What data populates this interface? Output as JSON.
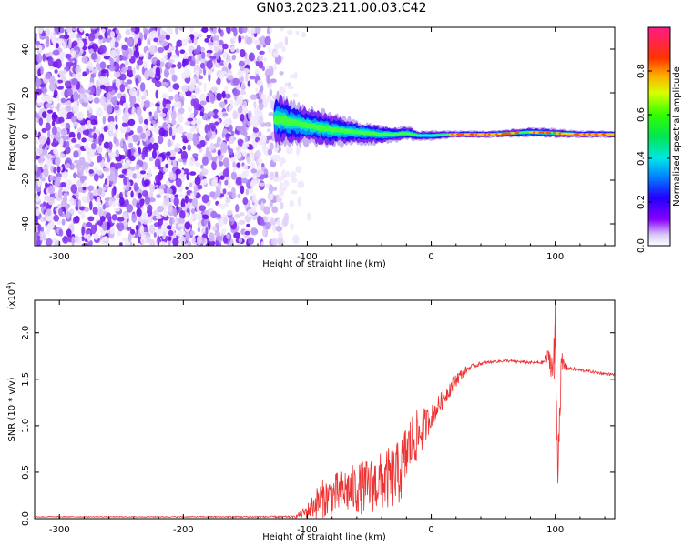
{
  "title": "GN03.2023.211.00.03.C42",
  "chart_data": [
    {
      "type": "heatmap",
      "xlabel": "Height of straight line (km)",
      "ylabel": "Frequency (Hz)",
      "xlim": [
        -320,
        148
      ],
      "ylim": [
        -50,
        50
      ],
      "xticks": [
        -300,
        -200,
        -100,
        0,
        100
      ],
      "yticks": [
        -40,
        -20,
        0,
        20,
        40
      ],
      "ridge": {
        "x": [
          -125,
          -110,
          -100,
          -80,
          -60,
          -40,
          -30,
          -20,
          -10,
          0,
          20,
          50,
          80,
          100,
          120,
          148
        ],
        "center_hz": [
          8,
          6,
          5,
          3,
          2,
          1,
          1,
          1.5,
          0.5,
          0.5,
          1,
          1,
          2,
          1.5,
          1,
          1
        ],
        "half_width_hz": [
          12,
          9,
          8,
          7,
          5,
          4,
          3,
          3,
          2,
          2,
          1.5,
          1.5,
          2,
          2,
          1.5,
          1.5
        ]
      },
      "noise_region_x": [
        -320,
        -120
      ],
      "colorbar": {
        "label": "Normalized spectral amplitude",
        "ticks": [
          0.0,
          0.2,
          0.4,
          0.6,
          0.8
        ],
        "range": [
          0,
          1
        ]
      }
    },
    {
      "type": "line",
      "xlabel": "Height of straight line (km)",
      "ylabel": "SNR (10 * v/v)",
      "scale_label": "(x10",
      "scale_exp": "4",
      "scale_close": ")",
      "xlim": [
        -320,
        148
      ],
      "ylim": [
        0.0,
        2.35
      ],
      "xticks": [
        -300,
        -200,
        -100,
        0,
        100
      ],
      "yticks": [
        0.0,
        0.5,
        1.0,
        1.5,
        2.0
      ],
      "color": "#ee3333",
      "x": [
        -320,
        -200,
        -110,
        -100,
        -90,
        -80,
        -70,
        -60,
        -50,
        -40,
        -30,
        -25,
        -20,
        -15,
        -10,
        0,
        10,
        20,
        30,
        40,
        50,
        60,
        70,
        80,
        90,
        95,
        98,
        100,
        102,
        105,
        110,
        120,
        130,
        140,
        148
      ],
      "y": [
        0.02,
        0.02,
        0.02,
        0.08,
        0.2,
        0.25,
        0.3,
        0.32,
        0.35,
        0.4,
        0.45,
        0.5,
        0.7,
        0.85,
        0.9,
        1.1,
        1.3,
        1.5,
        1.62,
        1.67,
        1.69,
        1.7,
        1.69,
        1.68,
        1.68,
        1.75,
        1.6,
        1.9,
        0.6,
        1.65,
        1.62,
        1.6,
        1.58,
        1.56,
        1.55
      ],
      "noise": [
        0.005,
        0.005,
        0.01,
        0.08,
        0.2,
        0.22,
        0.25,
        0.28,
        0.3,
        0.32,
        0.35,
        0.35,
        0.35,
        0.3,
        0.28,
        0.12,
        0.1,
        0.08,
        0.03,
        0.02,
        0.015,
        0.015,
        0.015,
        0.015,
        0.02,
        0.1,
        0.2,
        0.3,
        0.3,
        0.15,
        0.02,
        0.02,
        0.015,
        0.015,
        0.015
      ],
      "spike": {
        "x": 100,
        "y": 2.35
      }
    }
  ]
}
